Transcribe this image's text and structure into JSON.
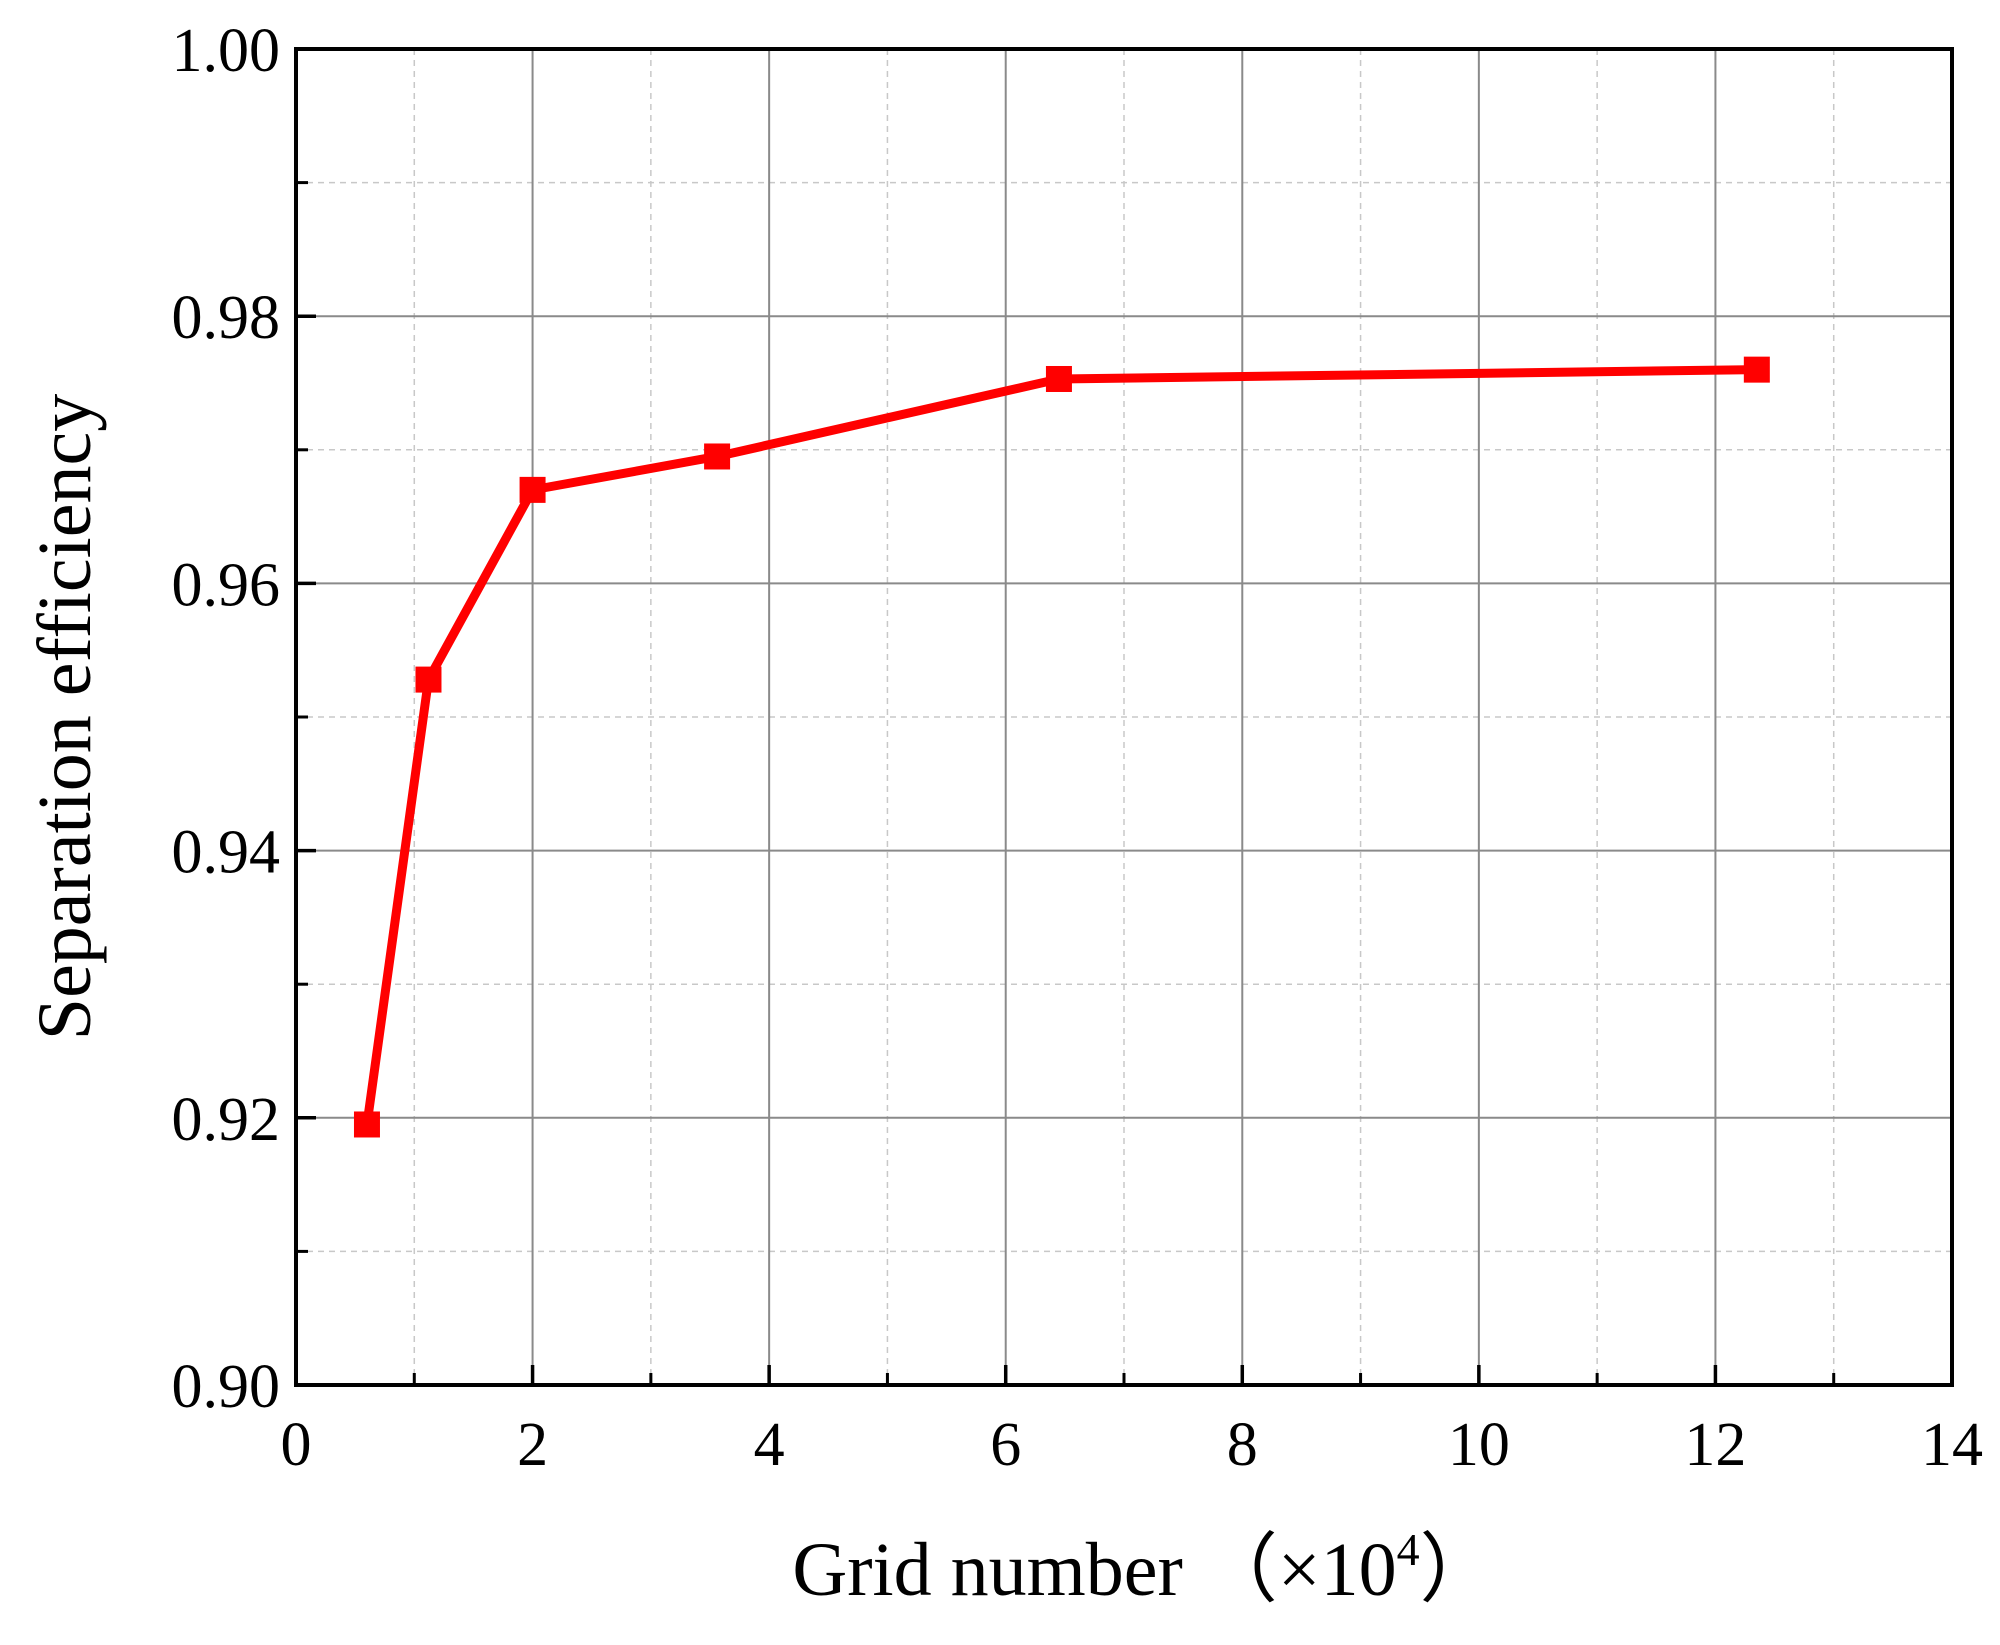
{
  "chart_data": {
    "type": "line",
    "xlabel": "Grid number （×10",
    "xlabel_exponent": "4",
    "xlabel_close": "）",
    "ylabel": "Separation efficiency",
    "xlim": [
      0,
      14
    ],
    "ylim": [
      0.9,
      1.0
    ],
    "x_ticks": [
      0,
      2,
      4,
      6,
      8,
      10,
      12,
      14
    ],
    "x_tick_labels": [
      "0",
      "2",
      "4",
      "6",
      "8",
      "10",
      "12",
      "14"
    ],
    "x_minor_step": 1,
    "y_ticks": [
      0.9,
      0.92,
      0.94,
      0.96,
      0.98,
      1.0
    ],
    "y_tick_labels": [
      "0.90",
      "0.92",
      "0.94",
      "0.96",
      "0.98",
      "1.00"
    ],
    "y_minor_step": 0.01,
    "grid": true,
    "series": [
      {
        "color": "#ff0000",
        "marker": "square",
        "x": [
          0.6,
          1.12,
          2.0,
          3.56,
          6.45,
          12.35
        ],
        "y": [
          0.9195,
          0.9528,
          0.967,
          0.9695,
          0.9753,
          0.976
        ]
      }
    ]
  }
}
